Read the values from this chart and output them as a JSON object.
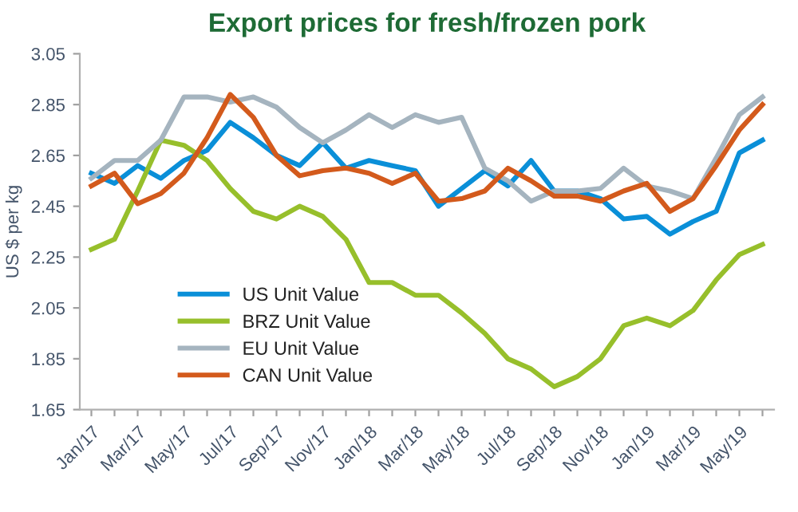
{
  "chart_data": {
    "type": "line",
    "title": "Export prices for fresh/frozen pork",
    "ylabel": "US $ per kg",
    "categories": [
      "Jan/17",
      null,
      "Mar/17",
      null,
      "May/17",
      null,
      "Jul/17",
      null,
      "Sep/17",
      null,
      "Nov/17",
      null,
      "Jan/18",
      null,
      "Mar/18",
      null,
      "May/18",
      null,
      "Jul/18",
      null,
      "Sep/18",
      null,
      "Nov/18",
      null,
      "Jan/19",
      null,
      "Mar/19",
      null,
      "May/19",
      null
    ],
    "series": [
      {
        "name": "US Unit Value",
        "color": "#0a8fd8",
        "values": [
          2.58,
          2.54,
          2.61,
          2.56,
          2.63,
          2.67,
          2.78,
          2.72,
          2.65,
          2.61,
          2.7,
          2.6,
          2.63,
          2.61,
          2.59,
          2.45,
          2.52,
          2.59,
          2.53,
          2.63,
          2.51,
          2.51,
          2.48,
          2.4,
          2.41,
          2.34,
          2.39,
          2.43,
          2.66,
          2.71
        ]
      },
      {
        "name": "BRZ Unit Value",
        "color": "#97bf2b",
        "values": [
          2.28,
          2.32,
          2.51,
          2.71,
          2.69,
          2.63,
          2.52,
          2.43,
          2.4,
          2.45,
          2.41,
          2.32,
          2.15,
          2.15,
          2.1,
          2.1,
          2.03,
          1.95,
          1.85,
          1.81,
          1.74,
          1.78,
          1.85,
          1.98,
          2.01,
          1.98,
          2.04,
          2.16,
          2.26,
          2.3
        ]
      },
      {
        "name": "EU Unit Value",
        "color": "#a5b4bf",
        "values": [
          2.56,
          2.63,
          2.63,
          2.71,
          2.88,
          2.88,
          2.86,
          2.88,
          2.84,
          2.76,
          2.7,
          2.75,
          2.81,
          2.76,
          2.81,
          2.78,
          2.8,
          2.6,
          2.55,
          2.47,
          2.51,
          2.51,
          2.52,
          2.6,
          2.53,
          2.51,
          2.48,
          2.64,
          2.81,
          2.88
        ]
      },
      {
        "name": "CAN Unit Value",
        "color": "#d35a1c",
        "values": [
          2.53,
          2.58,
          2.46,
          2.5,
          2.58,
          2.72,
          2.89,
          2.8,
          2.65,
          2.57,
          2.59,
          2.6,
          2.58,
          2.54,
          2.58,
          2.47,
          2.48,
          2.51,
          2.6,
          2.55,
          2.49,
          2.49,
          2.47,
          2.51,
          2.54,
          2.43,
          2.48,
          2.61,
          2.75,
          2.85
        ]
      }
    ],
    "ylim": [
      1.65,
      3.05
    ],
    "yticks": [
      1.65,
      1.85,
      2.05,
      2.25,
      2.45,
      2.65,
      2.85,
      3.05
    ],
    "legend": "bottom left",
    "grid": false
  }
}
